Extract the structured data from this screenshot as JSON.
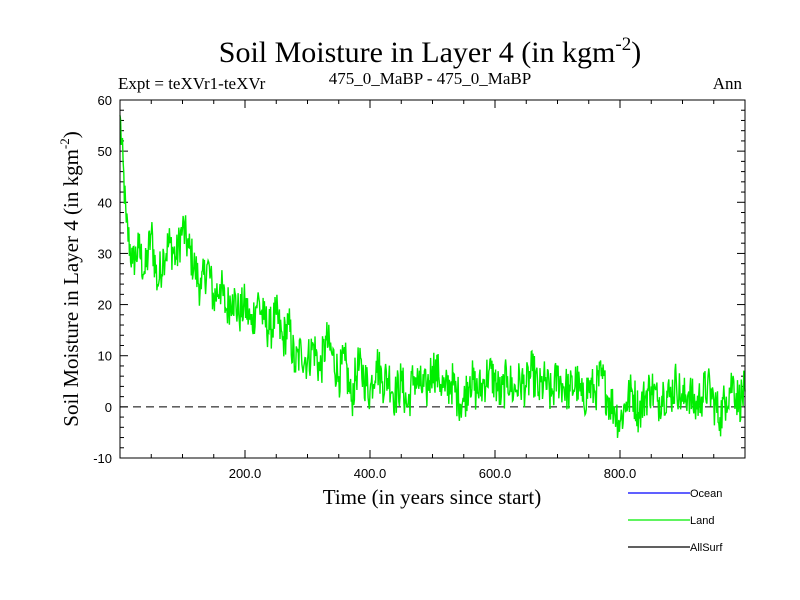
{
  "chart_data": {
    "type": "line",
    "title": "Soil Moisture in Layer 4 (in kgm",
    "title_sup": "-2",
    "title_close": ")",
    "subtitle_left": "Expt = teXVr1-teXVr",
    "subtitle_center": "475_0_MaBP - 475_0_MaBP",
    "subtitle_right": "Ann",
    "xlabel": "Time (in years since start)",
    "ylabel": "Soil Moisture in Layer 4 (in kgm",
    "ylabel_sup": "-2",
    "ylabel_close": ")",
    "xlim": [
      0,
      1000
    ],
    "ylim": [
      -10,
      60
    ],
    "x_tick_labels": [
      "200.0",
      "400.0",
      "600.0",
      "800.0"
    ],
    "x_tick_values": [
      200,
      400,
      600,
      800
    ],
    "y_tick_labels": [
      "-10",
      "0",
      "10",
      "20",
      "30",
      "40",
      "50",
      "60"
    ],
    "y_tick_values": [
      -10,
      0,
      10,
      20,
      30,
      40,
      50,
      60
    ],
    "zero_line": true,
    "series": [
      {
        "name": "Ocean",
        "color": "#0000ff",
        "x": [],
        "values": []
      },
      {
        "name": "Land",
        "color": "#00ee00",
        "x": [
          0,
          10,
          20,
          30,
          40,
          50,
          60,
          70,
          80,
          90,
          100,
          110,
          120,
          130,
          140,
          150,
          160,
          170,
          180,
          190,
          200,
          210,
          220,
          230,
          240,
          250,
          260,
          270,
          280,
          290,
          300,
          310,
          320,
          330,
          340,
          350,
          360,
          370,
          380,
          390,
          400,
          410,
          420,
          430,
          440,
          450,
          460,
          470,
          480,
          490,
          500,
          510,
          520,
          530,
          540,
          550,
          560,
          570,
          580,
          590,
          600,
          610,
          620,
          630,
          640,
          650,
          660,
          670,
          680,
          690,
          700,
          710,
          720,
          730,
          740,
          750,
          760,
          770,
          780,
          790,
          800,
          810,
          820,
          830,
          840,
          850,
          860,
          870,
          880,
          890,
          900,
          910,
          920,
          930,
          940,
          950,
          960,
          970,
          980,
          990,
          1000
        ],
        "values": [
          57,
          36,
          28,
          31,
          26,
          34,
          24,
          30,
          32,
          29,
          35,
          31,
          27,
          23,
          28,
          21,
          24,
          19,
          22,
          18,
          20,
          16,
          21,
          17,
          15,
          18,
          13,
          16,
          8,
          11,
          9,
          12,
          7,
          13,
          10,
          6,
          9,
          1,
          8,
          6,
          3,
          9,
          5,
          6,
          2,
          5,
          0,
          6,
          4,
          3,
          8,
          6,
          3,
          5,
          2,
          1,
          6,
          3,
          4,
          7,
          5,
          2,
          6,
          3,
          5,
          4,
          7,
          3,
          5,
          2,
          6,
          4,
          3,
          5,
          1,
          4,
          3,
          6,
          2,
          0,
          -3,
          1,
          3,
          -1,
          2,
          4,
          1,
          3,
          2,
          5,
          1,
          3,
          0,
          2,
          4,
          1,
          -2,
          2,
          5,
          1,
          3
        ]
      },
      {
        "name": "AllSurf",
        "color": "#000000",
        "x": [],
        "values": []
      }
    ],
    "legend_position": "bottom-right"
  }
}
